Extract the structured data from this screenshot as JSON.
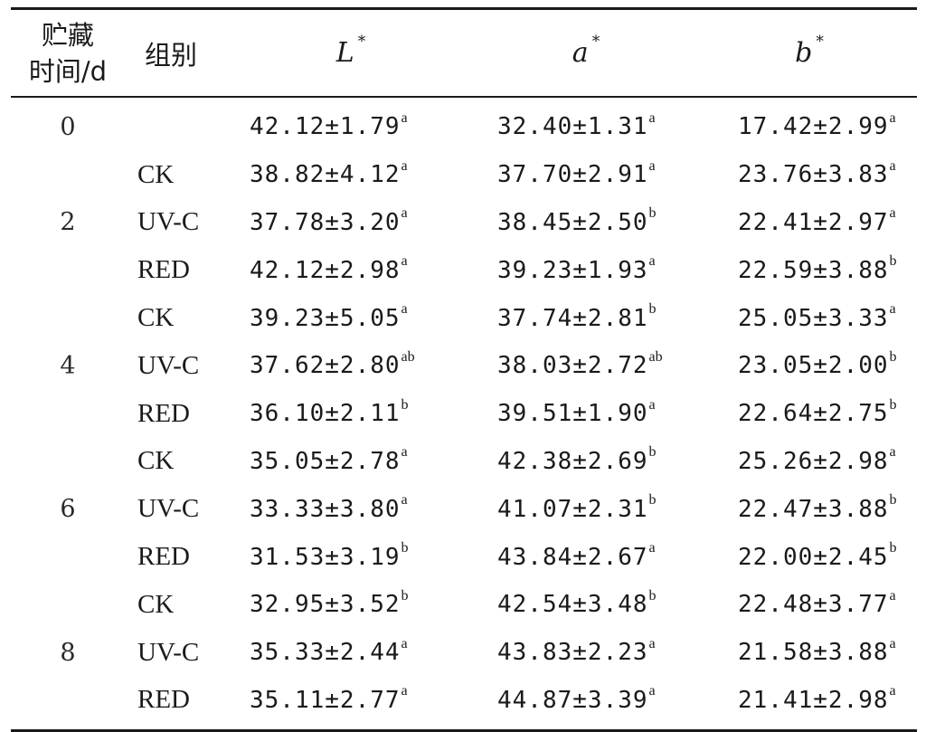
{
  "header": {
    "time_line1": "贮藏",
    "time_line2": "时间/d",
    "group": "组别",
    "L_symbol": "L",
    "a_symbol": "a",
    "b_symbol": "b",
    "star": "*"
  },
  "rows": [
    {
      "time": "0",
      "group": "",
      "L": "42.12±1.79",
      "L_sup": "a",
      "a": "32.40±1.31",
      "a_sup": "a",
      "b": "17.42±2.99",
      "b_sup": "a"
    },
    {
      "time": "",
      "group": "CK",
      "L": "38.82±4.12",
      "L_sup": "a",
      "a": "37.70±2.91",
      "a_sup": "a",
      "b": "23.76±3.83",
      "b_sup": "a"
    },
    {
      "time": "2",
      "group": "UV-C",
      "L": "37.78±3.20",
      "L_sup": "a",
      "a": "38.45±2.50",
      "a_sup": "b",
      "b": "22.41±2.97",
      "b_sup": "a"
    },
    {
      "time": "",
      "group": "RED",
      "L": "42.12±2.98",
      "L_sup": "a",
      "a": "39.23±1.93",
      "a_sup": "a",
      "b": "22.59±3.88",
      "b_sup": "b"
    },
    {
      "time": "",
      "group": "CK",
      "L": "39.23±5.05",
      "L_sup": "a",
      "a": "37.74±2.81",
      "a_sup": "b",
      "b": "25.05±3.33",
      "b_sup": "a"
    },
    {
      "time": "4",
      "group": "UV-C",
      "L": "37.62±2.80",
      "L_sup": "ab",
      "a": "38.03±2.72",
      "a_sup": "ab",
      "b": "23.05±2.00",
      "b_sup": "b"
    },
    {
      "time": "",
      "group": "RED",
      "L": "36.10±2.11",
      "L_sup": "b",
      "a": "39.51±1.90",
      "a_sup": "a",
      "b": "22.64±2.75",
      "b_sup": "b"
    },
    {
      "time": "",
      "group": "CK",
      "L": "35.05±2.78",
      "L_sup": "a",
      "a": "42.38±2.69",
      "a_sup": "b",
      "b": "25.26±2.98",
      "b_sup": "a"
    },
    {
      "time": "6",
      "group": "UV-C",
      "L": "33.33±3.80",
      "L_sup": "a",
      "a": "41.07±2.31",
      "a_sup": "b",
      "b": "22.47±3.88",
      "b_sup": "b"
    },
    {
      "time": "",
      "group": "RED",
      "L": "31.53±3.19",
      "L_sup": "b",
      "a": "43.84±2.67",
      "a_sup": "a",
      "b": "22.00±2.45",
      "b_sup": "b"
    },
    {
      "time": "",
      "group": "CK",
      "L": "32.95±3.52",
      "L_sup": "b",
      "a": "42.54±3.48",
      "a_sup": "b",
      "b": "22.48±3.77",
      "b_sup": "a"
    },
    {
      "time": "8",
      "group": "UV-C",
      "L": "35.33±2.44",
      "L_sup": "a",
      "a": "43.83±2.23",
      "a_sup": "a",
      "b": "21.58±3.88",
      "b_sup": "a"
    },
    {
      "time": "",
      "group": "RED",
      "L": "35.11±2.77",
      "L_sup": "a",
      "a": "44.87±3.39",
      "a_sup": "a",
      "b": "21.41±2.98",
      "b_sup": "a"
    }
  ]
}
